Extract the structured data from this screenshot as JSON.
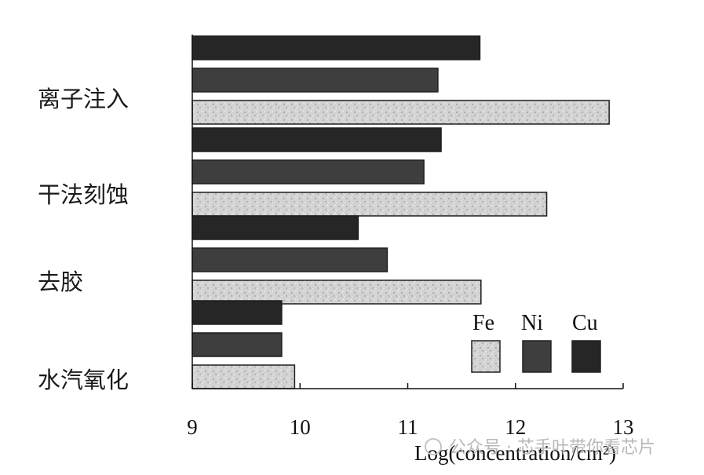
{
  "chart_data": {
    "type": "bar",
    "orientation": "horizontal",
    "categories": [
      "离子注入",
      "干法刻蚀",
      "去胶",
      "水汽氧化"
    ],
    "series": [
      {
        "name": "Cu",
        "values": [
          11.67,
          11.31,
          10.54,
          9.83
        ],
        "color": "#262626"
      },
      {
        "name": "Ni",
        "values": [
          11.28,
          11.15,
          10.81,
          9.83
        ],
        "color": "#3e3e3e"
      },
      {
        "name": "Fe",
        "values": [
          12.87,
          12.29,
          11.68,
          9.95
        ],
        "color": "#cfcfcf",
        "pattern": "speckled"
      }
    ],
    "xlim": [
      9,
      13
    ],
    "xticks": [
      "9",
      "10",
      "11",
      "12",
      "13"
    ],
    "xlabel": "Log(concentration/cm²)",
    "ylabel": "",
    "title": "",
    "grid": false,
    "legend": {
      "position": "bottom-right",
      "order": [
        "Fe",
        "Ni",
        "Cu"
      ]
    }
  },
  "watermark": {
    "text": "公众号 · 芯手叶带你看芯片"
  }
}
